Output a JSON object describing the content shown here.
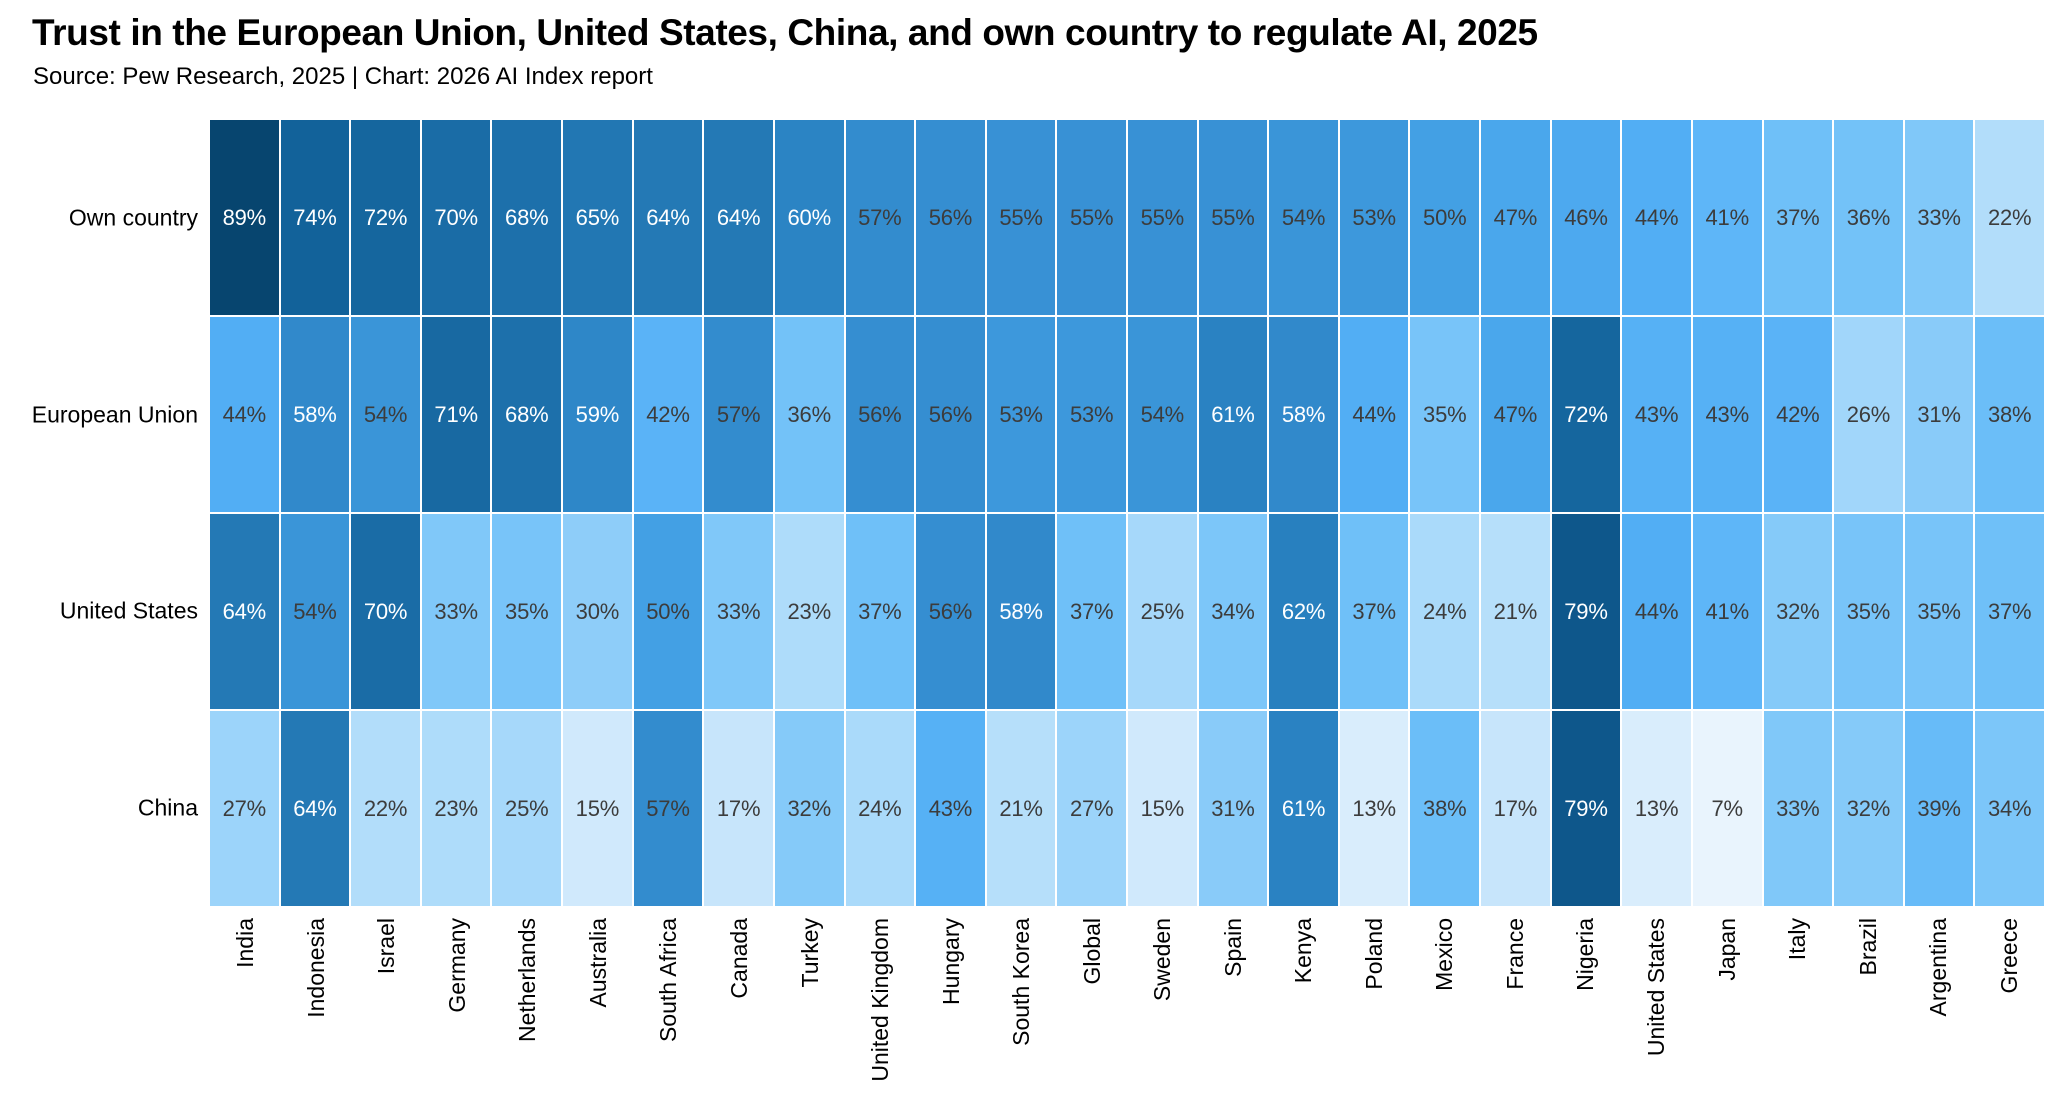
{
  "header": {
    "title": "Trust in the European Union, United States, China, and own country to regulate AI, 2025",
    "subtitle": "Source: Pew Research, 2025 | Chart: 2026 AI Index report"
  },
  "chart_data": {
    "type": "heatmap",
    "title": "Trust in the European Union, United States, China, and own country to regulate AI, 2025",
    "subtitle": "Source: Pew Research, 2025 | Chart: 2026 AI Index report",
    "unit": "%",
    "rows": [
      "Own country",
      "European Union",
      "United States",
      "China"
    ],
    "columns": [
      "India",
      "Indonesia",
      "Israel",
      "Germany",
      "Netherlands",
      "Australia",
      "South Africa",
      "Canada",
      "Turkey",
      "United Kingdom",
      "Hungary",
      "South Korea",
      "Global",
      "Sweden",
      "Spain",
      "Kenya",
      "Poland",
      "Mexico",
      "France",
      "Nigeria",
      "United States",
      "Japan",
      "Italy",
      "Brazil",
      "Argentina",
      "Greece"
    ],
    "series": [
      {
        "name": "Own country",
        "values": [
          89,
          74,
          72,
          70,
          68,
          65,
          64,
          64,
          60,
          57,
          56,
          55,
          55,
          55,
          55,
          54,
          53,
          50,
          47,
          46,
          44,
          41,
          37,
          36,
          33,
          22
        ]
      },
      {
        "name": "European Union",
        "values": [
          44,
          58,
          54,
          71,
          68,
          59,
          42,
          57,
          36,
          56,
          56,
          53,
          53,
          54,
          61,
          58,
          44,
          35,
          47,
          72,
          43,
          43,
          42,
          26,
          31,
          38
        ]
      },
      {
        "name": "United States",
        "values": [
          64,
          54,
          70,
          33,
          35,
          30,
          50,
          33,
          23,
          37,
          56,
          58,
          37,
          25,
          34,
          62,
          37,
          24,
          21,
          79,
          44,
          41,
          32,
          35,
          35,
          37
        ]
      },
      {
        "name": "China",
        "values": [
          27,
          64,
          22,
          23,
          25,
          15,
          57,
          17,
          32,
          24,
          43,
          21,
          27,
          15,
          31,
          61,
          13,
          38,
          17,
          79,
          13,
          7,
          33,
          32,
          39,
          34
        ]
      }
    ],
    "legend": "none",
    "grid_gap_color": "#ffffff",
    "color_scale": {
      "description": "sequential blue ramp, light = low trust, dark = high trust",
      "stops": [
        [
          0,
          "#f4f9fe"
        ],
        [
          7,
          "#e9f4fd"
        ],
        [
          13,
          "#d9edfc"
        ],
        [
          17,
          "#c7e5fb"
        ],
        [
          21,
          "#b6dffa"
        ],
        [
          25,
          "#a6d8fa"
        ],
        [
          30,
          "#8ecdf9"
        ],
        [
          33,
          "#80c8f9"
        ],
        [
          37,
          "#6fc0f8"
        ],
        [
          41,
          "#5eb6f8"
        ],
        [
          44,
          "#52aef4"
        ],
        [
          47,
          "#4aa7ec"
        ],
        [
          50,
          "#43a0e4"
        ],
        [
          53,
          "#3d98dc"
        ],
        [
          56,
          "#358ed1"
        ],
        [
          58,
          "#3189cb"
        ],
        [
          60,
          "#2b84c4"
        ],
        [
          62,
          "#2880bf"
        ],
        [
          64,
          "#2479b5"
        ],
        [
          68,
          "#1d70ab"
        ],
        [
          70,
          "#1a6ca6"
        ],
        [
          72,
          "#15669e"
        ],
        [
          74,
          "#12629a"
        ],
        [
          79,
          "#0e578b"
        ],
        [
          89,
          "#07456f"
        ],
        [
          100,
          "#032f4e"
        ]
      ],
      "white_text_threshold": 58,
      "text_color_light_cells": "#3c3c3c",
      "text_color_dark_cells": "#ffffff"
    }
  }
}
